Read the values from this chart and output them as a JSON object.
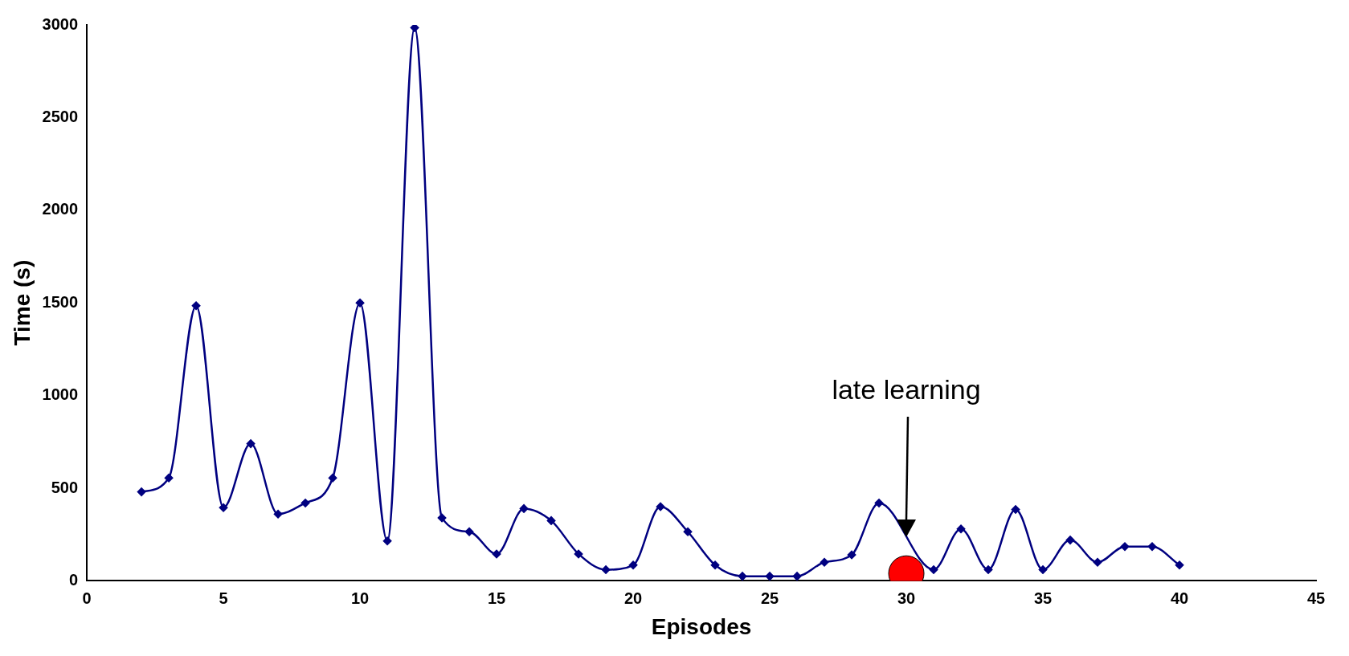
{
  "chart_data": {
    "type": "line",
    "xlabel": "Episodes",
    "ylabel": "Time (s)",
    "x": [
      2,
      3,
      4,
      5,
      6,
      7,
      8,
      9,
      10,
      11,
      12,
      13,
      14,
      15,
      16,
      17,
      18,
      19,
      20,
      21,
      22,
      23,
      24,
      25,
      26,
      27,
      28,
      29,
      30,
      31,
      32,
      33,
      34,
      35,
      36,
      37,
      38,
      39,
      40
    ],
    "series": [
      {
        "color": "#000080",
        "values": [
          480,
          555,
          1485,
          395,
          740,
          360,
          420,
          555,
          1500,
          215,
          2985,
          340,
          265,
          145,
          390,
          325,
          145,
          60,
          85,
          400,
          265,
          85,
          25,
          25,
          25,
          100,
          140,
          420,
          null,
          60,
          280,
          60,
          385,
          60,
          220,
          100,
          185,
          185,
          85
        ]
      },
      {
        "type": "scatter",
        "marker": "circle",
        "color": "#ff0000",
        "x": [
          30
        ],
        "values": [
          40
        ]
      }
    ],
    "xlim": [
      0,
      45
    ],
    "xticks": [
      0,
      5,
      10,
      15,
      20,
      25,
      30,
      35,
      40,
      45
    ],
    "ylim": [
      0,
      3000
    ],
    "yticks": [
      0,
      500,
      1000,
      1500,
      2000,
      2500,
      3000
    ],
    "annotations": [
      "late learning"
    ],
    "grid": false,
    "legend": false,
    "marker": "diamond",
    "line_style": "solid"
  }
}
